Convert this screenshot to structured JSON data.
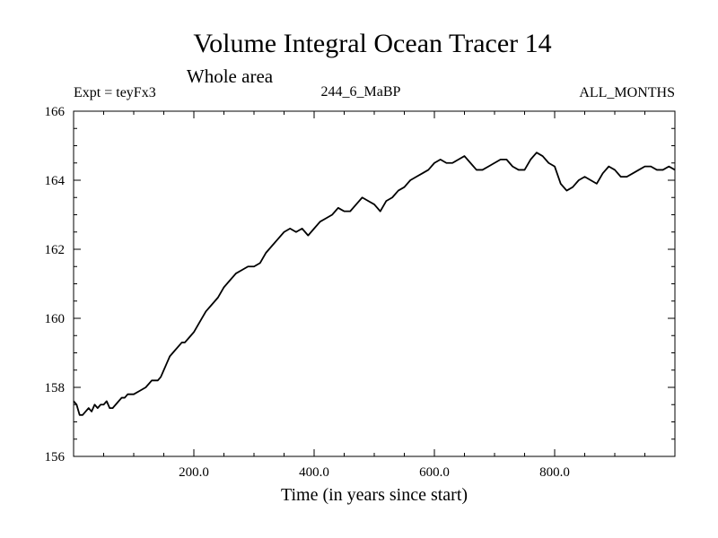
{
  "chart_data": {
    "type": "line",
    "title": "Volume Integral Ocean Tracer 14",
    "subtitle": "Whole area",
    "experiment_label": "Expt = teyFx3",
    "run_label": "244_6_MaBP",
    "months_label": "ALL_MONTHS",
    "xlabel": "Time (in years since start)",
    "ylabel": "",
    "xlim": [
      0,
      1000
    ],
    "ylim": [
      156,
      166
    ],
    "grid": false,
    "x_ticks": [
      200,
      400,
      600,
      800
    ],
    "x_tick_labels": [
      "200.0",
      "400.0",
      "600.0",
      "800.0"
    ],
    "y_ticks": [
      156,
      158,
      160,
      162,
      164,
      166
    ],
    "y_tick_labels": [
      "156",
      "158",
      "160",
      "162",
      "164",
      "166"
    ],
    "series": [
      {
        "name": "Volume Integral Ocean Tracer 14",
        "color": "#000000",
        "x": [
          0,
          5,
          10,
          15,
          20,
          25,
          30,
          35,
          40,
          45,
          50,
          55,
          60,
          65,
          70,
          75,
          80,
          85,
          90,
          95,
          100,
          110,
          120,
          130,
          140,
          145,
          150,
          155,
          160,
          165,
          170,
          175,
          180,
          185,
          190,
          195,
          200,
          210,
          220,
          230,
          240,
          250,
          260,
          270,
          280,
          290,
          300,
          310,
          320,
          330,
          340,
          350,
          360,
          370,
          380,
          390,
          400,
          410,
          420,
          430,
          440,
          450,
          460,
          470,
          480,
          490,
          500,
          510,
          520,
          530,
          540,
          550,
          560,
          570,
          580,
          590,
          600,
          610,
          620,
          630,
          640,
          650,
          660,
          670,
          680,
          690,
          700,
          710,
          720,
          730,
          740,
          750,
          760,
          770,
          780,
          790,
          800,
          810,
          820,
          830,
          840,
          850,
          860,
          870,
          880,
          890,
          900,
          910,
          920,
          930,
          940,
          950,
          960,
          970,
          980,
          990,
          1000
        ],
        "values": [
          157.6,
          157.5,
          157.2,
          157.2,
          157.3,
          157.4,
          157.3,
          157.5,
          157.4,
          157.5,
          157.5,
          157.6,
          157.4,
          157.4,
          157.5,
          157.6,
          157.7,
          157.7,
          157.8,
          157.8,
          157.8,
          157.9,
          158.0,
          158.2,
          158.2,
          158.3,
          158.5,
          158.7,
          158.9,
          159.0,
          159.1,
          159.2,
          159.3,
          159.3,
          159.4,
          159.5,
          159.6,
          159.9,
          160.2,
          160.4,
          160.6,
          160.9,
          161.1,
          161.3,
          161.4,
          161.5,
          161.5,
          161.6,
          161.9,
          162.1,
          162.3,
          162.5,
          162.6,
          162.5,
          162.6,
          162.4,
          162.6,
          162.8,
          162.9,
          163.0,
          163.2,
          163.1,
          163.1,
          163.3,
          163.5,
          163.4,
          163.3,
          163.1,
          163.4,
          163.5,
          163.7,
          163.8,
          164.0,
          164.1,
          164.2,
          164.3,
          164.5,
          164.6,
          164.5,
          164.5,
          164.6,
          164.7,
          164.5,
          164.3,
          164.3,
          164.4,
          164.5,
          164.6,
          164.6,
          164.4,
          164.3,
          164.3,
          164.6,
          164.8,
          164.7,
          164.5,
          164.4,
          163.9,
          163.7,
          163.8,
          164.0,
          164.1,
          164.0,
          163.9,
          164.2,
          164.4,
          164.3,
          164.1,
          164.1,
          164.2,
          164.3,
          164.4,
          164.4,
          164.3,
          164.3,
          164.4,
          164.3
        ]
      }
    ]
  }
}
